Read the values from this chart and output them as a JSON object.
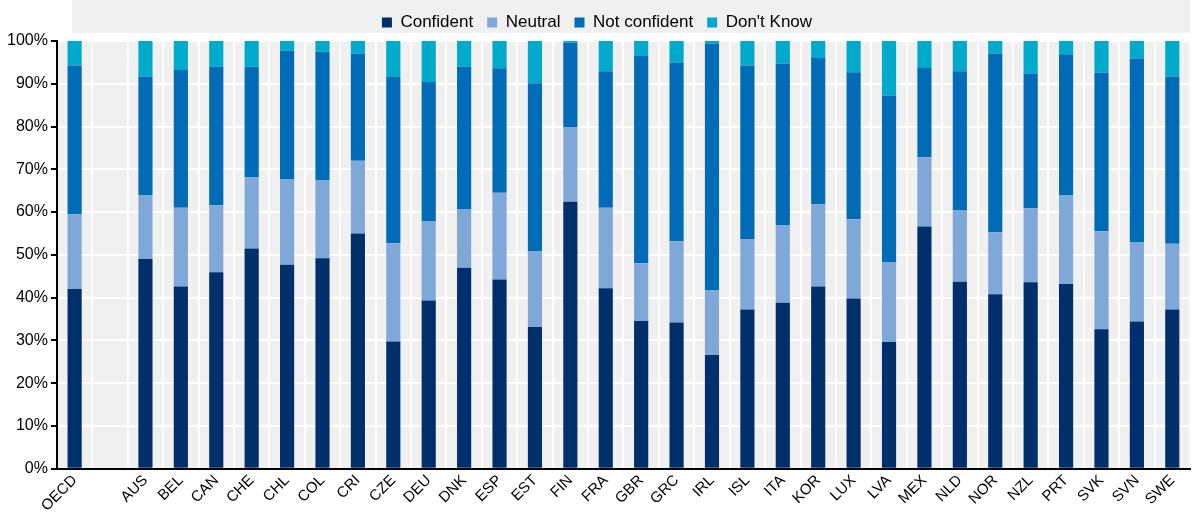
{
  "chart_data": {
    "type": "bar",
    "stacked": true,
    "grid": true,
    "legend": "top",
    "categories": [
      "OECD",
      null,
      "AUS",
      "BEL",
      "CAN",
      "CHE",
      "CHL",
      "COL",
      "CRI",
      "CZE",
      "DEU",
      "DNK",
      "ESP",
      "EST",
      "FIN",
      "FRA",
      "GBR",
      "GRC",
      "IRL",
      "ISL",
      "ITA",
      "KOR",
      "LUX",
      "LVA",
      "MEX",
      "NLD",
      "NOR",
      "NZL",
      "PRT",
      "SVK",
      "SVN",
      "SWE"
    ],
    "series": [
      {
        "name": "Confident",
        "color": "#002f6c",
        "values": [
          42,
          null,
          49,
          42.6,
          45.9,
          51.5,
          47.7,
          49.2,
          55,
          29.7,
          39.3,
          47,
          44.2,
          33.1,
          62.4,
          42.2,
          34.5,
          34.2,
          26.6,
          37.2,
          38.8,
          42.6,
          39.8,
          29.6,
          56.6,
          43.7,
          40.8,
          43.6,
          43.2,
          32.6,
          34.4,
          37.2
        ]
      },
      {
        "name": "Neutral",
        "color": "#7fa8d9",
        "values": [
          17.5,
          null,
          15,
          18.4,
          15.7,
          16.7,
          19.9,
          18.3,
          17,
          23,
          18.5,
          13.6,
          20.3,
          17.7,
          17.5,
          18.8,
          13.5,
          19,
          15.2,
          16.5,
          18.2,
          19.2,
          18.5,
          18.7,
          16.2,
          16.8,
          14.5,
          17.3,
          20.8,
          22.9,
          18.6,
          15.4
        ]
      },
      {
        "name": "Not confident",
        "color": "#006bb6",
        "values": [
          34.8,
          null,
          27.7,
          32.2,
          32.4,
          25.8,
          30.2,
          30,
          25,
          38.9,
          32.6,
          33.4,
          29.1,
          39.3,
          19.7,
          31.9,
          48.5,
          41.8,
          57.6,
          40.6,
          37.7,
          34.2,
          34.4,
          38.9,
          20.9,
          32.4,
          41.8,
          31.5,
          32.9,
          37.1,
          42.9,
          39.1
        ]
      },
      {
        "name": "Don't Know",
        "color": "#00aacc",
        "values": [
          5.7,
          null,
          8.3,
          6.8,
          6,
          6,
          2.2,
          2.5,
          3,
          8.4,
          9.6,
          6,
          6.4,
          9.9,
          0.4,
          7.1,
          3.5,
          5,
          0.6,
          5.7,
          5.3,
          4,
          7.3,
          12.8,
          6.3,
          7.1,
          2.9,
          7.6,
          3.1,
          7.4,
          4.1,
          8.3
        ]
      }
    ],
    "ylim": [
      0,
      100
    ],
    "yticks": [
      {
        "value": 0,
        "label": "0%"
      },
      {
        "value": 10,
        "label": "10%"
      },
      {
        "value": 20,
        "label": "20%"
      },
      {
        "value": 30,
        "label": "30%"
      },
      {
        "value": 40,
        "label": "40%"
      },
      {
        "value": 50,
        "label": "50%"
      },
      {
        "value": 60,
        "label": "60%"
      },
      {
        "value": 70,
        "label": "70%"
      },
      {
        "value": 80,
        "label": "80%"
      },
      {
        "value": 90,
        "label": "90%"
      },
      {
        "value": 100,
        "label": "100%"
      }
    ]
  }
}
